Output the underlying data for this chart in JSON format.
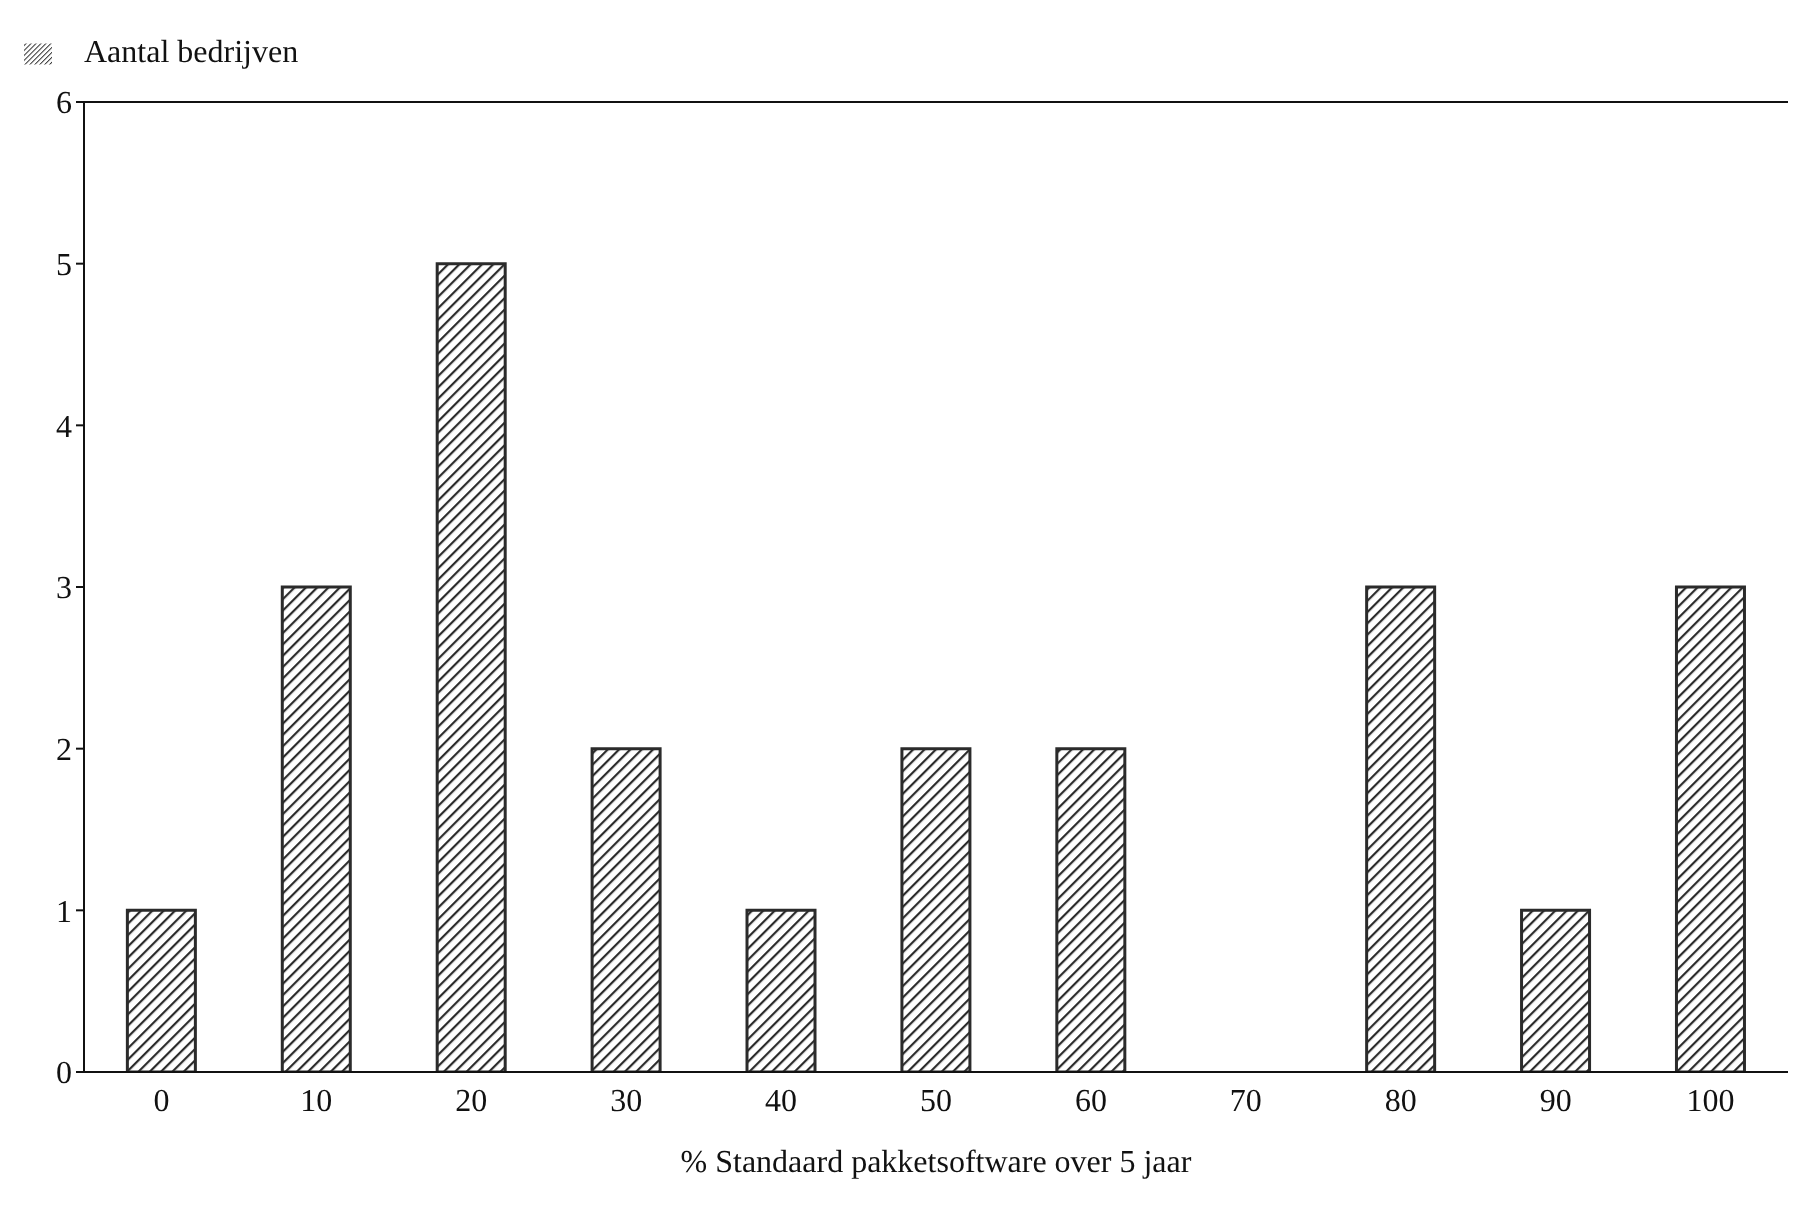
{
  "chart_data": {
    "type": "bar",
    "xlabel": "% Standaard pakketsoftware over 5 jaar",
    "categories": [
      "0",
      "10",
      "20",
      "30",
      "40",
      "50",
      "60",
      "70",
      "80",
      "90",
      "100"
    ],
    "series": [
      {
        "name": "Aantal bedrijven",
        "color": "#2b2b2b",
        "values": [
          1,
          3,
          5,
          2,
          1,
          2,
          2,
          0,
          3,
          1,
          3
        ]
      }
    ],
    "ylim": [
      0,
      6
    ],
    "yticks": [
      0,
      1,
      2,
      3,
      4,
      5,
      6
    ],
    "grid": false,
    "legend": "top left"
  }
}
